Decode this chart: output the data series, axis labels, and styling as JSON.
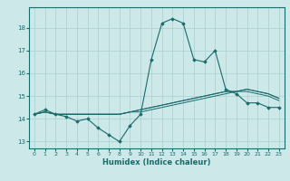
{
  "xlabel": "Humidex (Indice chaleur)",
  "background_color": "#cce8e8",
  "line_color": "#1a6b6b",
  "grid_color": "#aacfcf",
  "xlim": [
    -0.5,
    23.5
  ],
  "ylim": [
    12.7,
    18.9
  ],
  "yticks": [
    13,
    14,
    15,
    16,
    17,
    18
  ],
  "xticks": [
    0,
    1,
    2,
    3,
    4,
    5,
    6,
    7,
    8,
    9,
    10,
    11,
    12,
    13,
    14,
    15,
    16,
    17,
    18,
    19,
    20,
    21,
    22,
    23
  ],
  "series_main": [
    14.2,
    14.4,
    14.2,
    14.1,
    13.9,
    14.0,
    13.6,
    13.3,
    13.0,
    13.7,
    14.2,
    16.6,
    18.2,
    18.4,
    18.2,
    16.6,
    16.5,
    17.0,
    15.3,
    15.1,
    14.7,
    14.7,
    14.5,
    14.5
  ],
  "series2": [
    14.2,
    14.3,
    14.2,
    14.2,
    14.2,
    14.2,
    14.2,
    14.2,
    14.2,
    14.3,
    14.3,
    14.4,
    14.5,
    14.6,
    14.7,
    14.8,
    14.9,
    15.0,
    15.1,
    15.2,
    15.3,
    15.2,
    15.1,
    14.9
  ],
  "series3": [
    14.2,
    14.3,
    14.2,
    14.2,
    14.2,
    14.2,
    14.2,
    14.2,
    14.2,
    14.3,
    14.4,
    14.5,
    14.6,
    14.7,
    14.8,
    14.9,
    15.0,
    15.1,
    15.2,
    15.2,
    15.2,
    15.1,
    15.0,
    14.8
  ],
  "series4": [
    14.2,
    14.3,
    14.2,
    14.2,
    14.2,
    14.2,
    14.2,
    14.2,
    14.2,
    14.3,
    14.4,
    14.5,
    14.6,
    14.7,
    14.8,
    14.9,
    15.0,
    15.1,
    15.2,
    15.2,
    15.3,
    15.2,
    15.1,
    14.9
  ]
}
